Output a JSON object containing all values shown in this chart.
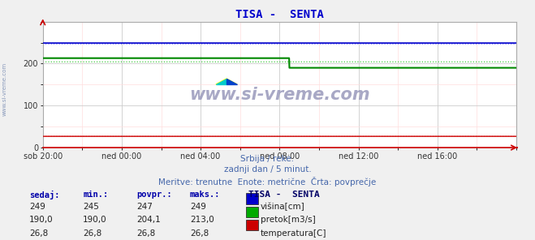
{
  "title": "TISA -  SENTA",
  "title_color": "#0000cc",
  "bg_color": "#f0f0f0",
  "plot_bg_color": "#ffffff",
  "grid_color_major": "#cccccc",
  "grid_color_minor": "#ffdddd",
  "x_tick_labels": [
    "sob 20:00",
    "ned 00:00",
    "ned 04:00",
    "ned 08:00",
    "ned 12:00",
    "ned 16:00"
  ],
  "x_tick_positions": [
    0,
    288,
    576,
    864,
    1152,
    1440
  ],
  "x_max": 1728,
  "ylim": [
    0,
    300
  ],
  "yticks": [
    0,
    100,
    200
  ],
  "subtitle1": "Srbija / reke.",
  "subtitle2": "zadnji dan / 5 minut.",
  "subtitle3": "Meritve: trenutne  Enote: metrične  Črta: povprečje",
  "subtitle_color": "#4466aa",
  "watermark": "www.si-vreme.com",
  "watermark_color": "#9999bb",
  "legend_title": "TISA -  SENTA",
  "legend_title_color": "#000066",
  "table_headers": [
    "sedaj:",
    "min.:",
    "povpr.:",
    "maks.:"
  ],
  "table_header_color": "#0000aa",
  "rows": [
    {
      "values": [
        "249",
        "245",
        "247",
        "249"
      ],
      "color": "#0000cc",
      "label": "višina[cm]"
    },
    {
      "values": [
        "190,0",
        "190,0",
        "204,1",
        "213,0"
      ],
      "color": "#00aa00",
      "label": "pretok[m3/s]"
    },
    {
      "values": [
        "26,8",
        "26,8",
        "26,8",
        "26,8"
      ],
      "color": "#cc0000",
      "label": "temperatura[C]"
    }
  ],
  "visina_color": "#0000cc",
  "pretok_color": "#008800",
  "temp_color": "#cc0000",
  "avg_visina_color": "#6666ff",
  "avg_pretok_color": "#44cc44",
  "avg_temp_color": "#ff9999",
  "visina_val": 249,
  "visina_avg": 247,
  "pretok_before": 213.0,
  "pretok_after": 190.0,
  "pretok_avg": 204.1,
  "temp_val": 26.8,
  "temp_avg": 26.8,
  "drop_x": 900,
  "n_points": 1728,
  "left_label": "www.si-vreme.com"
}
